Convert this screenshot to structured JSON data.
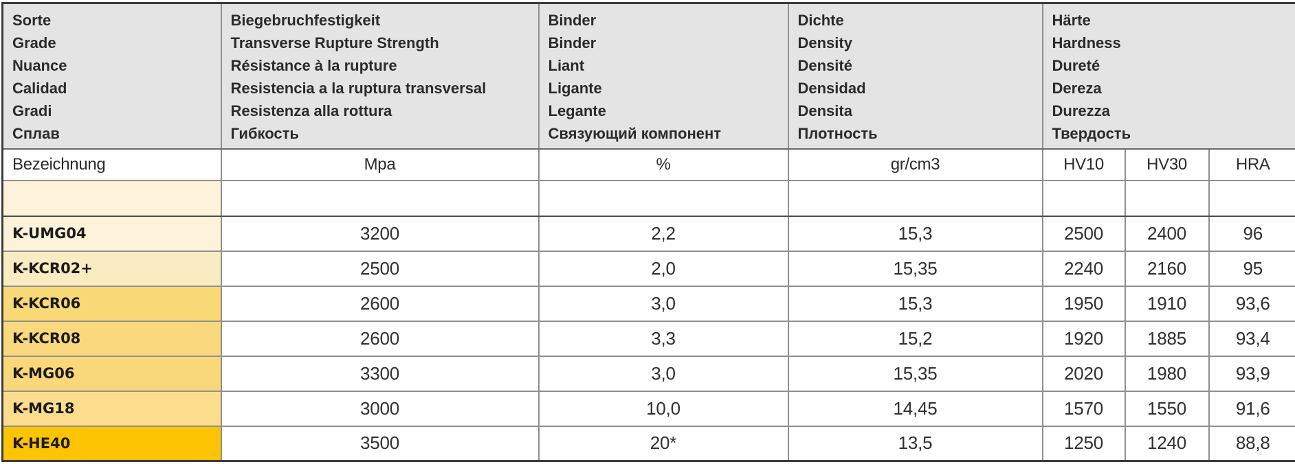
{
  "table": {
    "header_columns": [
      {
        "lines": [
          "Sorte",
          "Grade",
          "Nuance",
          "Calidad",
          "Gradi",
          "Сплав"
        ]
      },
      {
        "lines": [
          "Biegebruchfestigkeit",
          "Transverse Rupture Strength",
          "Résistance à la rupture",
          "Resistencia a la ruptura transversal",
          "Resistenza alla rottura",
          "Гибкость"
        ]
      },
      {
        "lines": [
          "Binder",
          "Binder",
          "Liant",
          "Ligante",
          "Legante",
          "Связующий компонент"
        ]
      },
      {
        "lines": [
          "Dichte",
          "Density",
          "Densité",
          "Densidad",
          "Densita",
          "Плотность"
        ]
      },
      {
        "lines": [
          "Härte",
          "Hardness",
          "Dureté",
          "Dereza",
          "Durezza",
          "Твердость"
        ]
      }
    ],
    "subheader": {
      "designation": "Bezeichnung",
      "trs_unit": "Mpa",
      "binder_unit": "%",
      "density_unit": "gr/cm3",
      "hv10": "HV10",
      "hv30": "HV30",
      "hra": "HRA"
    },
    "rows": [
      {
        "grade": "K-UMG04",
        "trs": "3200",
        "binder": "2,2",
        "density": "15,3",
        "hv10": "2500",
        "hv30": "2400",
        "hra": "96",
        "grade_bg": "#fcf3da"
      },
      {
        "grade": "K-KCR02+",
        "trs": "2500",
        "binder": "2,0",
        "density": "15,35",
        "hv10": "2240",
        "hv30": "2160",
        "hra": "95",
        "grade_bg": "#faecc2"
      },
      {
        "grade": "K-KCR06",
        "trs": "2600",
        "binder": "3,0",
        "density": "15,3",
        "hv10": "1950",
        "hv30": "1910",
        "hra": "93,6",
        "grade_bg": "#f9d876"
      },
      {
        "grade": "K-KCR08",
        "trs": "2600",
        "binder": "3,3",
        "density": "15,2",
        "hv10": "1920",
        "hv30": "1885",
        "hra": "93,4",
        "grade_bg": "#fad97e"
      },
      {
        "grade": "K-MG06",
        "trs": "3300",
        "binder": "3,0",
        "density": "15,35",
        "hv10": "2020",
        "hv30": "1980",
        "hra": "93,9",
        "grade_bg": "#f9d87a"
      },
      {
        "grade": "K-MG18",
        "trs": "3000",
        "binder": "10,0",
        "density": "14,45",
        "hv10": "1570",
        "hv30": "1550",
        "hra": "91,6",
        "grade_bg": "#fbdd8d"
      },
      {
        "grade": "K-HE40",
        "trs": "3500",
        "binder": "20*",
        "density": "13,5",
        "hv10": "1250",
        "hv30": "1240",
        "hra": "88,8",
        "grade_bg": "#fcc402"
      }
    ],
    "empty_row_grade_bg": "#fcf3da",
    "colors": {
      "header_bg": "#e4e4e4",
      "grid_line": "#8f8f8f",
      "outer_border": "#3b3b3b",
      "text": "#2b2b2b"
    }
  }
}
